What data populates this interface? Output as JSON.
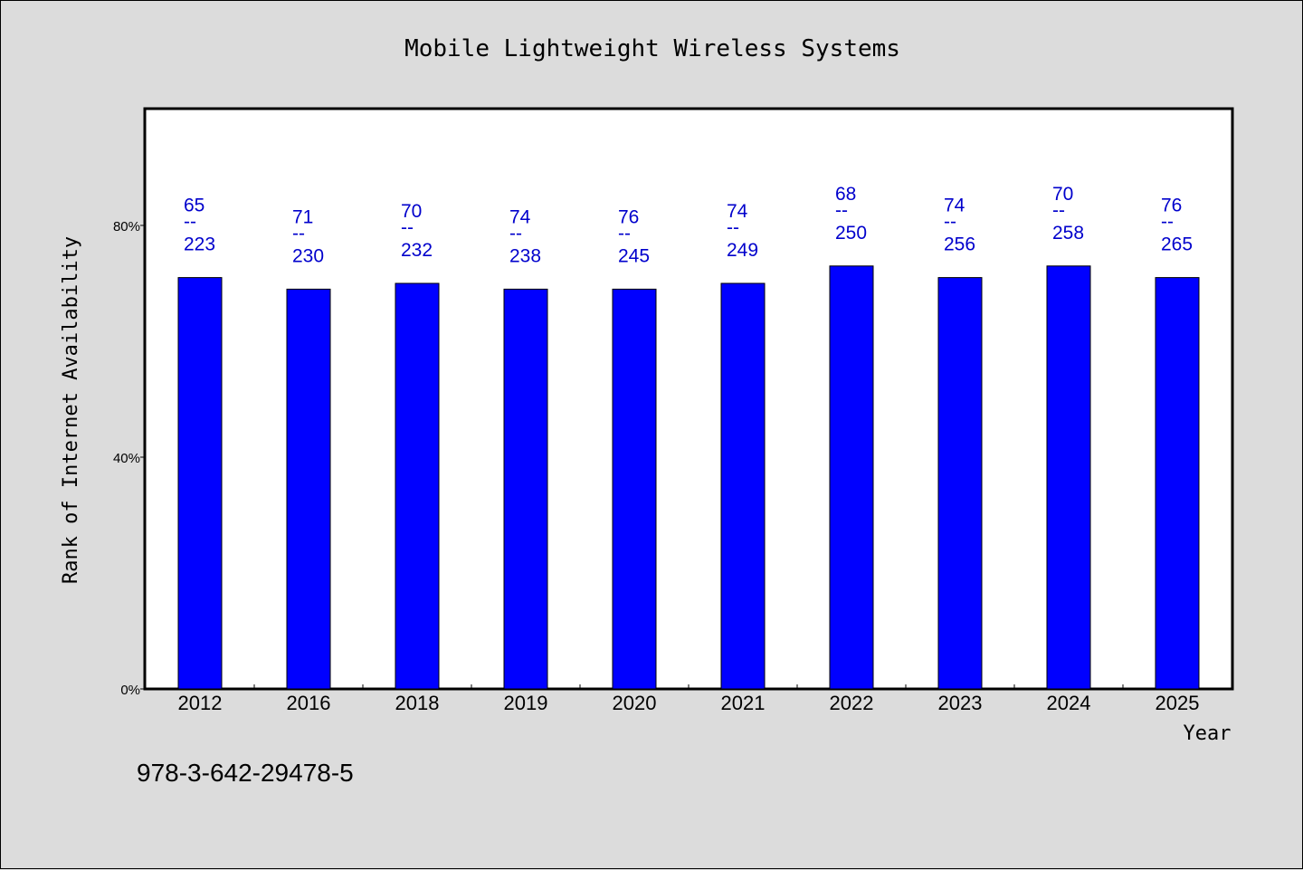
{
  "chart_data": {
    "type": "bar",
    "title": "Mobile Lightweight Wireless Systems",
    "xlabel": "Year",
    "ylabel": "Rank of Internet Availability",
    "categories": [
      "2012",
      "2016",
      "2018",
      "2019",
      "2020",
      "2021",
      "2022",
      "2023",
      "2024",
      "2025"
    ],
    "values": [
      71,
      69,
      70,
      69,
      69,
      70,
      73,
      71,
      73,
      71
    ],
    "label_top": [
      "65",
      "71",
      "70",
      "74",
      "76",
      "74",
      "68",
      "74",
      "70",
      "76"
    ],
    "label_bottom": [
      "223",
      "230",
      "232",
      "238",
      "245",
      "249",
      "250",
      "256",
      "258",
      "265"
    ],
    "label_separator": "--",
    "ylim": [
      0,
      100
    ],
    "yticks": [
      0,
      40,
      80
    ],
    "ytick_labels": [
      "0%",
      "40%",
      "80%"
    ],
    "grid": false,
    "bar_color": "#0000ff",
    "label_color": "#0000cc"
  },
  "footer_code": "978-3-642-29478-5"
}
